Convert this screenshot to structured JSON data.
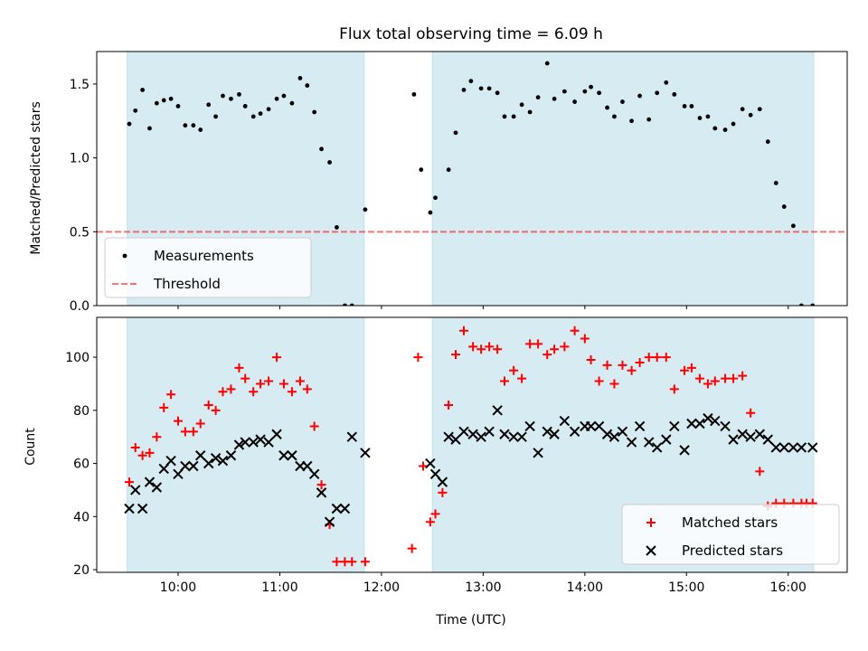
{
  "chart_data": [
    {
      "type": "scatter",
      "title": "Flux total observing time = 6.09 h",
      "xlabel": "",
      "ylabel": "Matched/Predicted stars",
      "ylim": [
        0,
        1.72
      ],
      "yticks": [
        "0.0",
        "0.5",
        "1.0",
        "1.5"
      ],
      "ytick_values": [
        0,
        0.5,
        1.0,
        1.5
      ],
      "x_unit": "hours UTC",
      "xlim": [
        9.2,
        16.58
      ],
      "shaded_intervals": [
        [
          9.5,
          11.83
        ],
        [
          12.5,
          16.25
        ]
      ],
      "threshold": 0.5,
      "legend": {
        "placement": "lower-left",
        "entries": [
          "Measurements",
          "Threshold"
        ]
      },
      "series": [
        {
          "name": "Measurements",
          "marker": "dot",
          "x": [
            9.52,
            9.58,
            9.65,
            9.72,
            9.79,
            9.86,
            9.93,
            10.0,
            10.07,
            10.15,
            10.22,
            10.3,
            10.37,
            10.44,
            10.52,
            10.6,
            10.66,
            10.74,
            10.81,
            10.89,
            10.97,
            11.04,
            11.12,
            11.2,
            11.27,
            11.34,
            11.41,
            11.49,
            11.56,
            11.64,
            11.71,
            11.84,
            12.32,
            12.39,
            12.48,
            12.53,
            12.66,
            12.73,
            12.81,
            12.88,
            12.98,
            13.06,
            13.14,
            13.21,
            13.3,
            13.38,
            13.46,
            13.54,
            13.63,
            13.7,
            13.8,
            13.9,
            14.0,
            14.06,
            14.14,
            14.22,
            14.29,
            14.37,
            14.46,
            14.54,
            14.63,
            14.71,
            14.8,
            14.88,
            14.98,
            15.05,
            15.13,
            15.21,
            15.28,
            15.38,
            15.46,
            15.55,
            15.63,
            15.72,
            15.8,
            15.88,
            15.96,
            16.05,
            16.13,
            16.24
          ],
          "y": [
            1.23,
            1.32,
            1.46,
            1.2,
            1.37,
            1.39,
            1.4,
            1.35,
            1.22,
            1.22,
            1.19,
            1.36,
            1.28,
            1.42,
            1.4,
            1.43,
            1.35,
            1.28,
            1.3,
            1.33,
            1.4,
            1.42,
            1.37,
            1.54,
            1.49,
            1.31,
            1.06,
            0.97,
            0.53,
            0.0,
            0.0,
            0.65,
            1.43,
            0.92,
            0.63,
            0.73,
            0.92,
            1.17,
            1.46,
            1.52,
            1.47,
            1.47,
            1.44,
            1.28,
            1.28,
            1.36,
            1.31,
            1.41,
            1.64,
            1.4,
            1.45,
            1.38,
            1.45,
            1.48,
            1.44,
            1.34,
            1.28,
            1.38,
            1.25,
            1.42,
            1.26,
            1.44,
            1.51,
            1.43,
            1.35,
            1.35,
            1.27,
            1.28,
            1.2,
            1.19,
            1.23,
            1.33,
            1.29,
            1.33,
            1.11,
            0.83,
            0.67,
            0.54,
            0.0,
            0.0
          ]
        }
      ]
    },
    {
      "type": "scatter",
      "title": "",
      "xlabel": "Time (UTC)",
      "ylabel": "Count",
      "ylim": [
        19,
        115
      ],
      "yticks": [
        "20",
        "40",
        "60",
        "80",
        "100"
      ],
      "ytick_values": [
        20,
        40,
        60,
        80,
        100
      ],
      "x_unit": "hours UTC",
      "xlim": [
        9.2,
        16.58
      ],
      "xticks": [
        "10:00",
        "11:00",
        "12:00",
        "13:00",
        "14:00",
        "15:00",
        "16:00"
      ],
      "xtick_values": [
        10,
        11,
        12,
        13,
        14,
        15,
        16
      ],
      "shaded_intervals": [
        [
          9.5,
          11.83
        ],
        [
          12.5,
          16.25
        ]
      ],
      "legend": {
        "placement": "lower-right",
        "entries": [
          "Matched stars",
          "Predicted stars"
        ]
      },
      "series": [
        {
          "name": "Matched stars",
          "marker": "plus",
          "color": "#ff0000",
          "x": [
            9.52,
            9.58,
            9.65,
            9.72,
            9.79,
            9.86,
            9.93,
            10.0,
            10.07,
            10.15,
            10.22,
            10.3,
            10.37,
            10.44,
            10.52,
            10.6,
            10.66,
            10.74,
            10.81,
            10.89,
            10.97,
            11.04,
            11.12,
            11.2,
            11.27,
            11.34,
            11.41,
            11.49,
            11.56,
            11.64,
            11.71,
            11.84,
            12.3,
            12.36,
            12.41,
            12.48,
            12.53,
            12.6,
            12.66,
            12.73,
            12.81,
            12.9,
            12.98,
            13.06,
            13.14,
            13.21,
            13.3,
            13.38,
            13.46,
            13.54,
            13.63,
            13.7,
            13.8,
            13.9,
            14.0,
            14.06,
            14.14,
            14.22,
            14.29,
            14.37,
            14.46,
            14.54,
            14.63,
            14.71,
            14.8,
            14.88,
            14.98,
            15.05,
            15.13,
            15.21,
            15.28,
            15.38,
            15.46,
            15.55,
            15.63,
            15.72,
            15.8,
            15.88,
            15.96,
            16.05,
            16.13,
            16.18,
            16.24
          ],
          "y": [
            53,
            66,
            63,
            64,
            70,
            81,
            86,
            76,
            72,
            72,
            75,
            82,
            80,
            87,
            88,
            96,
            92,
            87,
            90,
            91,
            100,
            90,
            87,
            91,
            88,
            74,
            52,
            37,
            23,
            23,
            23,
            23,
            28,
            100,
            59,
            38,
            41,
            49,
            82,
            101,
            110,
            104,
            103,
            104,
            103,
            91,
            95,
            92,
            105,
            105,
            101,
            103,
            104,
            110,
            107,
            99,
            91,
            97,
            90,
            97,
            95,
            98,
            100,
            100,
            100,
            88,
            95,
            96,
            92,
            90,
            91,
            92,
            92,
            93,
            79,
            57,
            44,
            45,
            45,
            45,
            45,
            45,
            45
          ]
        },
        {
          "name": "Predicted stars",
          "marker": "x",
          "color": "#000000",
          "x": [
            9.52,
            9.58,
            9.65,
            9.72,
            9.79,
            9.86,
            9.93,
            10.0,
            10.07,
            10.15,
            10.22,
            10.3,
            10.37,
            10.44,
            10.52,
            10.6,
            10.66,
            10.74,
            10.81,
            10.89,
            10.97,
            11.04,
            11.12,
            11.2,
            11.27,
            11.34,
            11.41,
            11.49,
            11.56,
            11.64,
            11.71,
            11.84,
            12.48,
            12.53,
            12.6,
            12.66,
            12.73,
            12.81,
            12.9,
            12.98,
            13.06,
            13.14,
            13.21,
            13.3,
            13.38,
            13.46,
            13.54,
            13.63,
            13.7,
            13.8,
            13.9,
            14.0,
            14.06,
            14.14,
            14.22,
            14.29,
            14.37,
            14.46,
            14.54,
            14.63,
            14.71,
            14.8,
            14.88,
            14.98,
            15.05,
            15.13,
            15.21,
            15.28,
            15.38,
            15.46,
            15.55,
            15.63,
            15.72,
            15.8,
            15.88,
            15.96,
            16.05,
            16.13,
            16.24
          ],
          "y": [
            43,
            50,
            43,
            53,
            51,
            58,
            61,
            56,
            59,
            59,
            63,
            60,
            62,
            61,
            63,
            67,
            68,
            68,
            69,
            68,
            71,
            63,
            63,
            59,
            59,
            56,
            49,
            38,
            43,
            43,
            70,
            64,
            60,
            56,
            53,
            70,
            69,
            72,
            71,
            70,
            72,
            80,
            71,
            70,
            70,
            74,
            64,
            72,
            71,
            76,
            72,
            74,
            74,
            74,
            71,
            70,
            72,
            68,
            74,
            68,
            66,
            69,
            74,
            65,
            75,
            75,
            77,
            76,
            74,
            69,
            71,
            70,
            71,
            69,
            66,
            66,
            66,
            66,
            66
          ]
        }
      ]
    }
  ],
  "colors": {
    "shade": "#add8e6",
    "measurement": "#000000",
    "threshold": "#ff0000",
    "matched": "#ff0000",
    "predicted": "#000000"
  }
}
